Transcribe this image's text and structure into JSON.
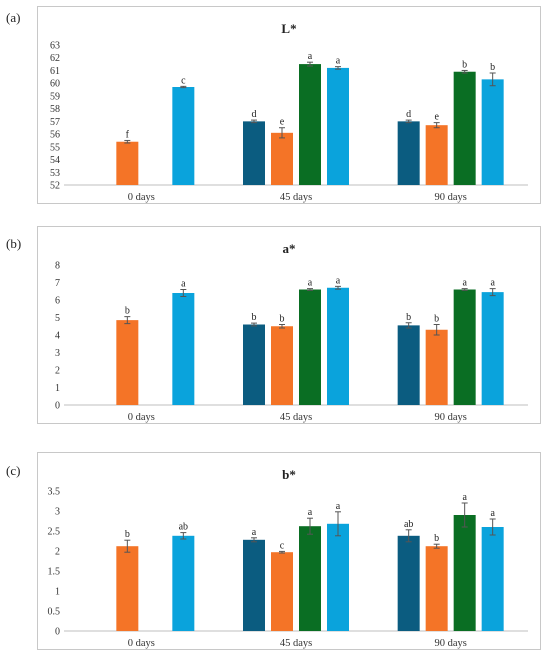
{
  "panels": [
    {
      "label": "(a)"
    },
    {
      "label": "(b)"
    },
    {
      "label": "(c)"
    }
  ],
  "colors": {
    "series1": "#0b5c80",
    "series2": "#f47427",
    "series3": "#0a6e23",
    "series4": "#0aa3dc",
    "grid": "#d9d9d9",
    "axis": "#bfbfbf"
  },
  "chart_data": [
    {
      "type": "bar",
      "title": "L*",
      "categories": [
        "0 days",
        "45 days",
        "90 days"
      ],
      "ylim": [
        52,
        63
      ],
      "yticks": [
        52,
        53,
        54,
        55,
        56,
        57,
        58,
        59,
        60,
        61,
        62,
        63
      ],
      "grid": false,
      "series": [
        {
          "values": [
            null,
            57.0,
            57.0
          ],
          "errors": [
            null,
            0.1,
            0.1
          ],
          "letters": [
            null,
            "d",
            "d"
          ]
        },
        {
          "values": [
            55.4,
            56.1,
            56.7
          ],
          "errors": [
            0.1,
            0.4,
            0.2
          ],
          "letters": [
            "f",
            "e",
            "e"
          ]
        },
        {
          "values": [
            null,
            61.5,
            60.9
          ],
          "errors": [
            null,
            0.15,
            0.1
          ],
          "letters": [
            null,
            "a",
            "b"
          ]
        },
        {
          "values": [
            59.7,
            61.2,
            60.3
          ],
          "errors": [
            0.05,
            0.1,
            0.5
          ],
          "letters": [
            "c",
            "a",
            "b"
          ]
        }
      ]
    },
    {
      "type": "bar",
      "title": "a*",
      "categories": [
        "0 days",
        "45 days",
        "90 days"
      ],
      "ylim": [
        0,
        8
      ],
      "yticks": [
        0,
        1,
        2,
        3,
        4,
        5,
        6,
        7,
        8
      ],
      "grid": false,
      "series": [
        {
          "values": [
            null,
            4.6,
            4.55
          ],
          "errors": [
            null,
            0.08,
            0.15
          ],
          "letters": [
            null,
            "b",
            "b"
          ]
        },
        {
          "values": [
            4.85,
            4.5,
            4.3
          ],
          "errors": [
            0.2,
            0.1,
            0.3
          ],
          "letters": [
            "b",
            "b",
            "b"
          ]
        },
        {
          "values": [
            null,
            6.6,
            6.6
          ],
          "errors": [
            null,
            0.05,
            0.05
          ],
          "letters": [
            null,
            "a",
            "a"
          ]
        },
        {
          "values": [
            6.4,
            6.7,
            6.45
          ],
          "errors": [
            0.2,
            0.08,
            0.2
          ],
          "letters": [
            "a",
            "a",
            "a"
          ]
        }
      ]
    },
    {
      "type": "bar",
      "title": "b*",
      "categories": [
        "0 days",
        "45 days",
        "90 days"
      ],
      "ylim": [
        0,
        3.5
      ],
      "yticks": [
        "0",
        "0.5",
        "1",
        "1.5",
        "2",
        "2.5",
        "3",
        "3.5"
      ],
      "grid": false,
      "series": [
        {
          "values": [
            null,
            2.28,
            2.38
          ],
          "errors": [
            null,
            0.05,
            0.15
          ],
          "letters": [
            null,
            "a",
            "ab"
          ]
        },
        {
          "values": [
            2.12,
            1.97,
            2.12
          ],
          "errors": [
            0.15,
            0.02,
            0.05
          ],
          "letters": [
            "b",
            "c",
            "b"
          ]
        },
        {
          "values": [
            null,
            2.62,
            2.9
          ],
          "errors": [
            null,
            0.2,
            0.3
          ],
          "letters": [
            null,
            "a",
            "a"
          ]
        },
        {
          "values": [
            2.38,
            2.68,
            2.6
          ],
          "errors": [
            0.08,
            0.3,
            0.2
          ],
          "letters": [
            "ab",
            "a",
            "a"
          ]
        }
      ]
    }
  ]
}
